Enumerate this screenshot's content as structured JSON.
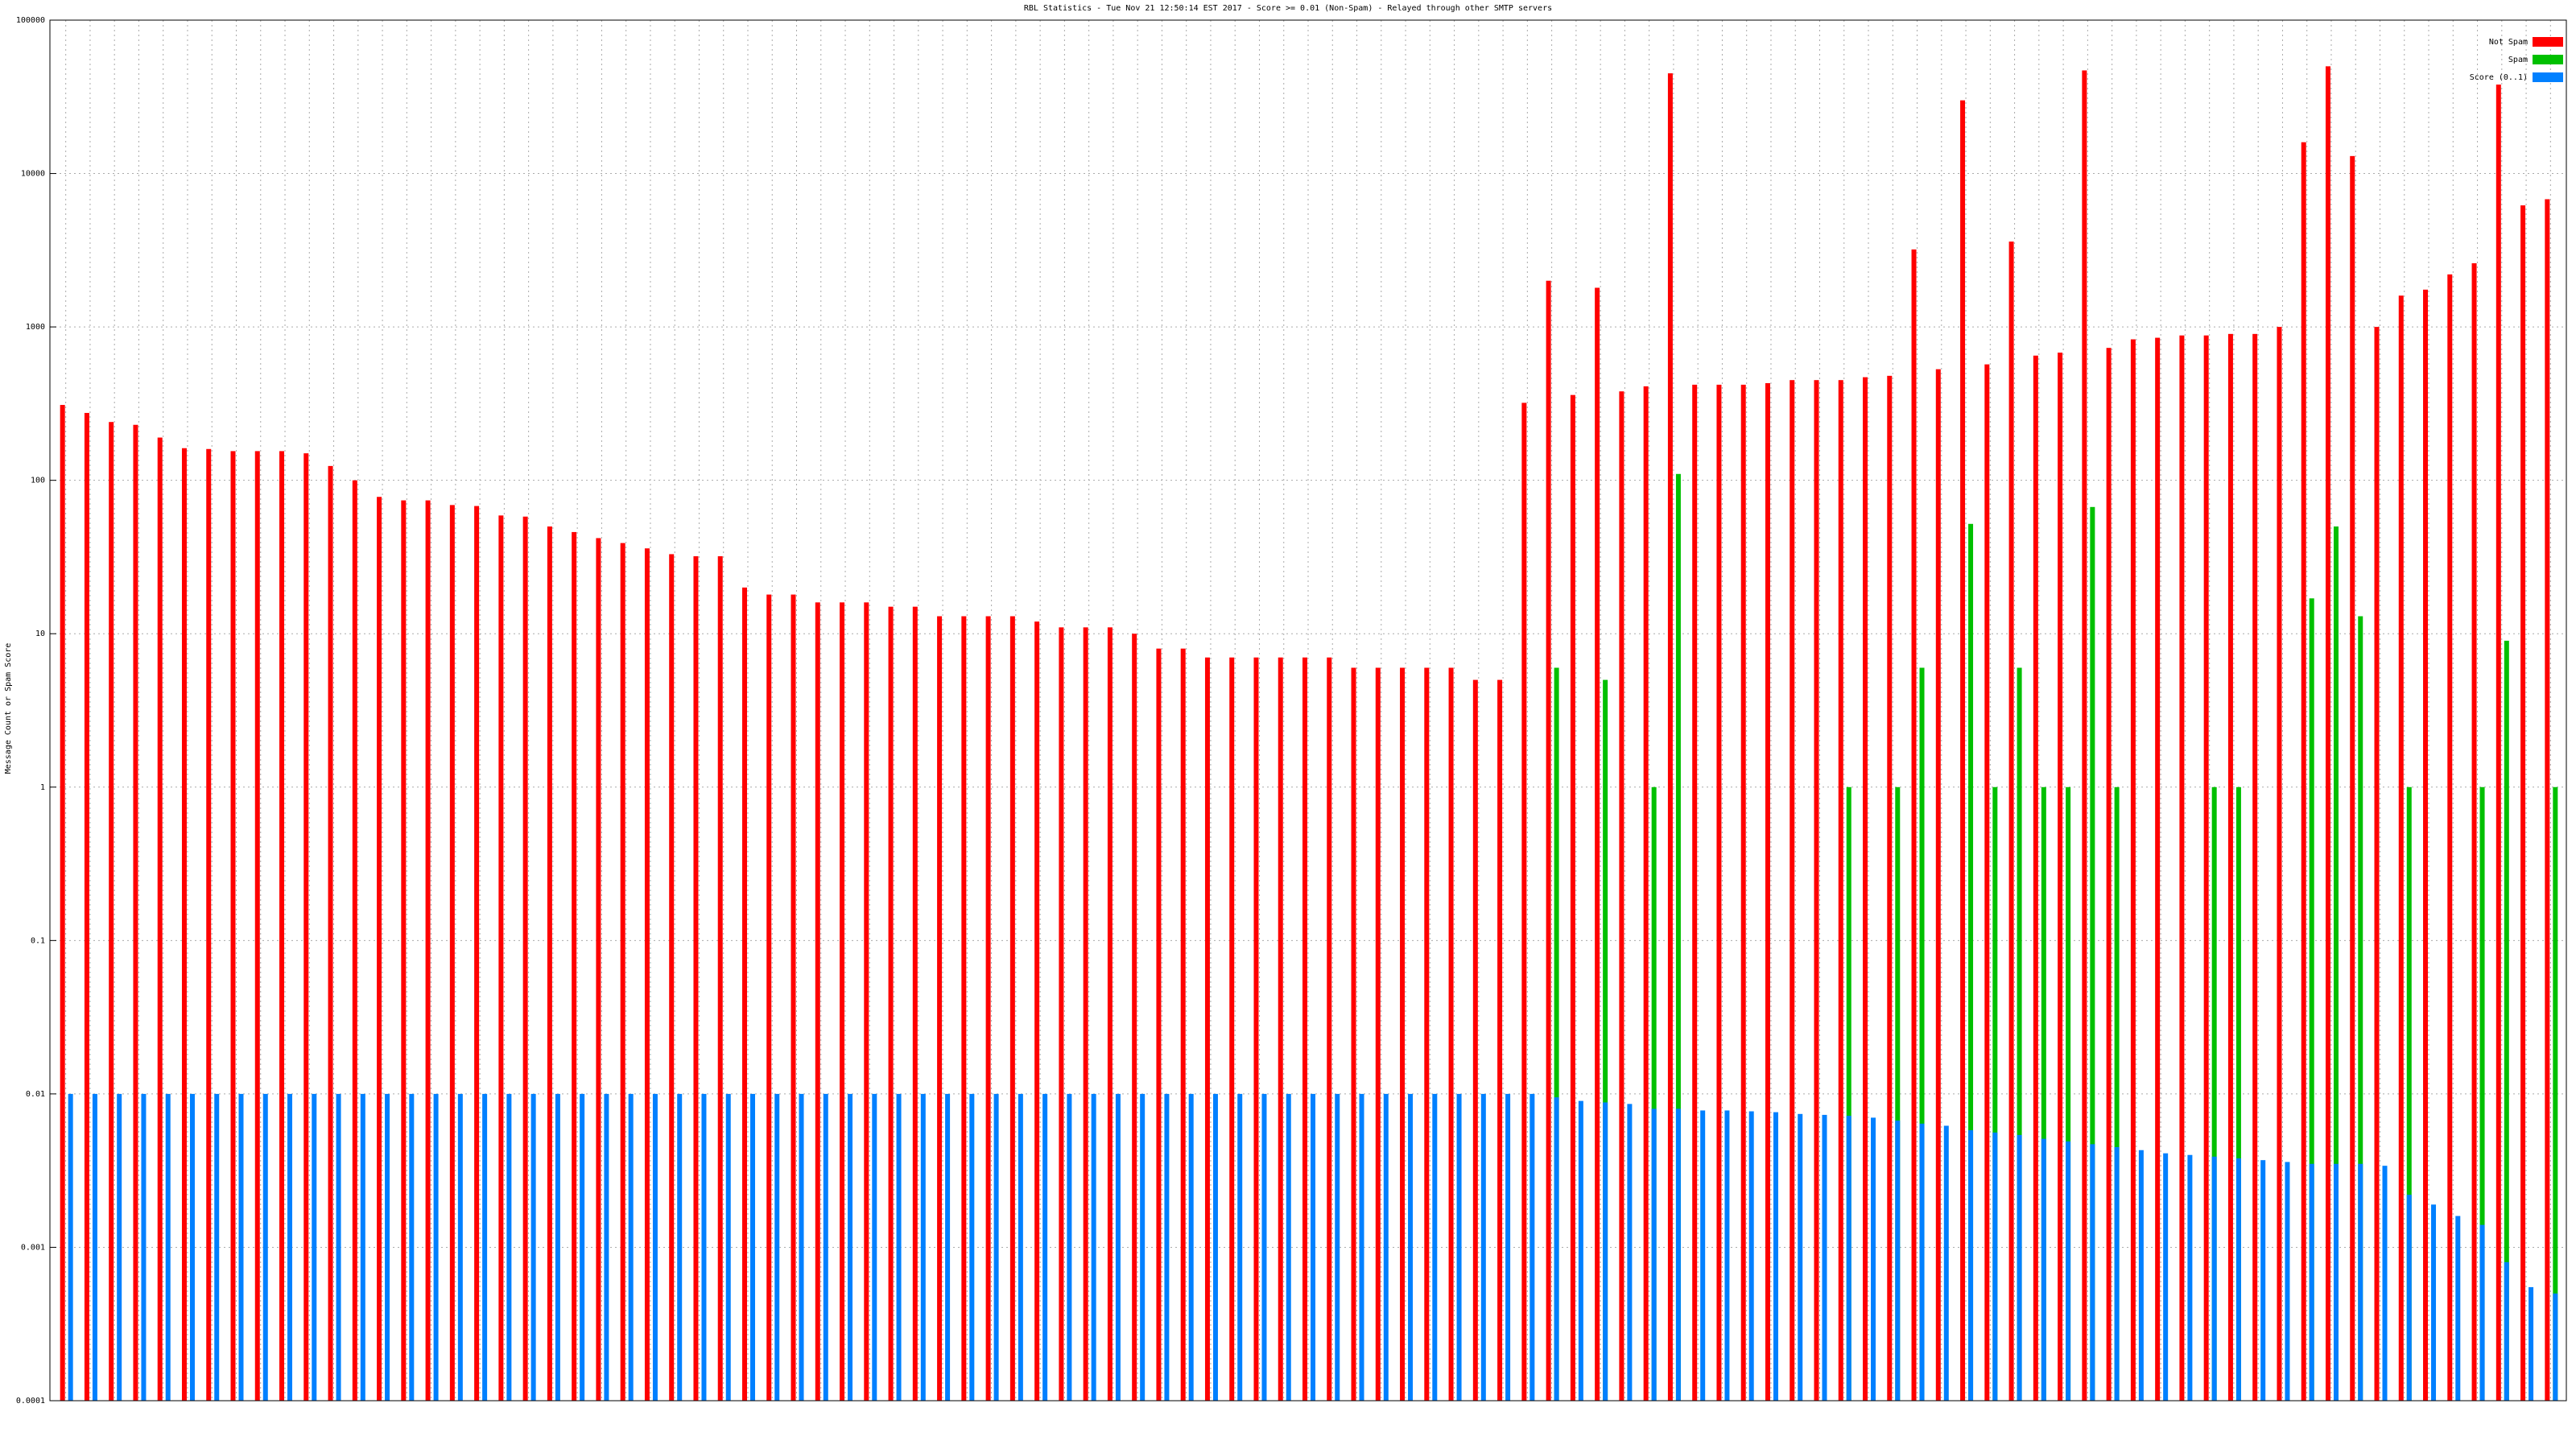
{
  "chart_data": {
    "type": "bar",
    "title": "RBL Statistics - Tue Nov 21 12:50:14 EST 2017 - Score >= 0.01 (Non-Spam) - Relayed through other SMTP servers",
    "y_label": "Message Count or Spam Score",
    "log_scale": true,
    "grid": true,
    "legend": "top-right",
    "ylim": [
      0.0001,
      100000
    ],
    "yticks": [
      100000,
      10000,
      1000,
      100,
      10,
      1,
      0.1,
      0.01,
      0.001,
      0.0001
    ],
    "categories": [
      null,
      null,
      null,
      null,
      null,
      null,
      null,
      null,
      null,
      null,
      null,
      null,
      null,
      null,
      null,
      null,
      null,
      null,
      null,
      null,
      null,
      null,
      null,
      null,
      null,
      null,
      null,
      null,
      null,
      null,
      null,
      null,
      null,
      null,
      null,
      null,
      null,
      null,
      null,
      null,
      null,
      null,
      null,
      null,
      null,
      null,
      null,
      null,
      null,
      null,
      null,
      null,
      null,
      null,
      null,
      null,
      null,
      null,
      null,
      null,
      null,
      null,
      null,
      null,
      null,
      null,
      null,
      null,
      null,
      null,
      null,
      null,
      null,
      null,
      null,
      null,
      null,
      null,
      null,
      null,
      null,
      null,
      null,
      null,
      null,
      null,
      null,
      null,
      null,
      null,
      null,
      null,
      null,
      null,
      null,
      null,
      null,
      null,
      null,
      null,
      null,
      null,
      null
    ],
    "series": [
      {
        "name": "Not Spam",
        "color": "#ff0000",
        "values": [
          310,
          275,
          240,
          230,
          190,
          162,
          160,
          155,
          155,
          155,
          150,
          124,
          100,
          78,
          74,
          74,
          69,
          68,
          59,
          58,
          50,
          46,
          42,
          39,
          36,
          33,
          32,
          32,
          20,
          18,
          18,
          16,
          16,
          16,
          15,
          15,
          13,
          13,
          13,
          13,
          12,
          11,
          11,
          11,
          10,
          8,
          8,
          7,
          7,
          7,
          7,
          7,
          7,
          6,
          6,
          6,
          6,
          6,
          5,
          5,
          320,
          2000,
          360,
          1800,
          380,
          410,
          45000,
          420,
          420,
          420,
          430,
          450,
          450,
          450,
          470,
          480,
          3200,
          530,
          30000,
          570,
          3600,
          650,
          680,
          47000,
          730,
          830,
          850,
          880,
          880,
          900,
          900,
          1000,
          16000,
          50000,
          13000,
          1000,
          1600,
          1750,
          2200,
          2600,
          38000,
          6200,
          6800
        ]
      },
      {
        "name": "Spam",
        "color": "#00c000",
        "values": [
          null,
          null,
          null,
          null,
          null,
          null,
          null,
          null,
          null,
          null,
          null,
          null,
          null,
          null,
          null,
          null,
          null,
          null,
          null,
          null,
          null,
          null,
          null,
          null,
          null,
          null,
          null,
          null,
          null,
          null,
          null,
          null,
          null,
          null,
          null,
          null,
          null,
          null,
          null,
          null,
          null,
          null,
          null,
          null,
          null,
          null,
          null,
          null,
          null,
          null,
          null,
          null,
          null,
          null,
          null,
          null,
          null,
          null,
          null,
          null,
          null,
          6,
          null,
          5,
          null,
          1,
          110,
          null,
          null,
          null,
          null,
          null,
          null,
          1,
          null,
          1,
          6,
          null,
          52,
          1,
          6,
          1,
          1,
          67,
          1,
          null,
          null,
          null,
          1,
          1,
          null,
          null,
          17,
          50,
          13,
          null,
          1,
          null,
          null,
          1,
          9,
          null,
          1
        ]
      },
      {
        "name": "Score (0..1)",
        "color": "#0080ff",
        "values": [
          0.01,
          0.01,
          0.01,
          0.01,
          0.01,
          0.01,
          0.01,
          0.01,
          0.01,
          0.01,
          0.01,
          0.01,
          0.01,
          0.01,
          0.01,
          0.01,
          0.01,
          0.01,
          0.01,
          0.01,
          0.01,
          0.01,
          0.01,
          0.01,
          0.01,
          0.01,
          0.01,
          0.01,
          0.01,
          0.01,
          0.01,
          0.01,
          0.01,
          0.01,
          0.01,
          0.01,
          0.01,
          0.01,
          0.01,
          0.01,
          0.01,
          0.01,
          0.01,
          0.01,
          0.01,
          0.01,
          0.01,
          0.01,
          0.01,
          0.01,
          0.01,
          0.01,
          0.01,
          0.01,
          0.01,
          0.01,
          0.01,
          0.01,
          0.01,
          0.01,
          0.01,
          0.0095,
          0.009,
          0.0088,
          0.0086,
          0.008,
          0.008,
          0.0078,
          0.0078,
          0.0077,
          0.0076,
          0.0074,
          0.0073,
          0.0072,
          0.007,
          0.0067,
          0.0064,
          0.0062,
          0.0058,
          0.0056,
          0.0054,
          0.0051,
          0.0049,
          0.0047,
          0.0045,
          0.0043,
          0.0041,
          0.004,
          0.0039,
          0.0038,
          0.0037,
          0.0036,
          0.0035,
          0.0035,
          0.0035,
          0.0034,
          0.0022,
          0.0019,
          0.0016,
          0.0014,
          0.0008,
          0.00055,
          0.0005
        ]
      }
    ]
  }
}
